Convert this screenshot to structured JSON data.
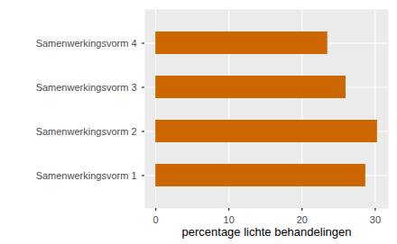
{
  "chart_data": {
    "type": "bar",
    "orientation": "horizontal",
    "categories": [
      "Samenwerkingsvorm 1",
      "Samenwerkingsvorm 2",
      "Samenwerkingsvorm 3",
      "Samenwerkingsvorm 4"
    ],
    "values": [
      28.7,
      30.3,
      26.0,
      23.5
    ],
    "color": "#CC6600",
    "x_label": "percentage lichte behandelingen",
    "xlim": [
      -1.5,
      31.8
    ],
    "xticks": [
      0,
      10,
      20,
      30
    ],
    "grid": true
  }
}
